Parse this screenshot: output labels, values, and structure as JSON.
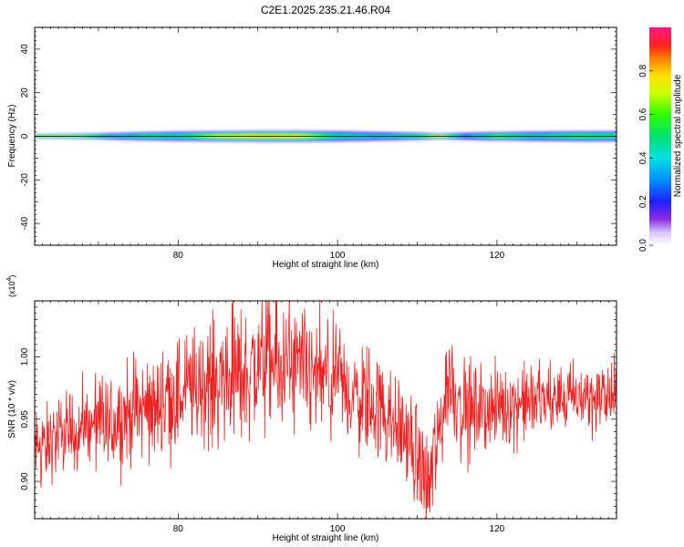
{
  "figure": {
    "title": "C2E1.2025.235.21.46.R04"
  },
  "chart_data": [
    {
      "type": "heatmap",
      "xlabel": "Height of straight line (km)",
      "ylabel": "Frequency (Hz)",
      "xlim": [
        62,
        135
      ],
      "ylim": [
        -50,
        50
      ],
      "x_ticks": [
        80,
        100,
        120
      ],
      "y_ticks": [
        -40,
        -20,
        0,
        20,
        40
      ],
      "colorbar": {
        "label": "Normalized spectral amplitude",
        "range": [
          0,
          1
        ],
        "ticks": [
          "0.0",
          "0.2",
          "0.4",
          "0.6",
          "0.8"
        ]
      },
      "band_center_hz": 0,
      "band_halfwidth_hz": [
        [
          63,
          1.2
        ],
        [
          70,
          1.6
        ],
        [
          75,
          2.2
        ],
        [
          80,
          2.6
        ],
        [
          85,
          2.8
        ],
        [
          90,
          3.0
        ],
        [
          95,
          3.0
        ],
        [
          100,
          2.8
        ],
        [
          105,
          2.4
        ],
        [
          110,
          2.0
        ],
        [
          113,
          1.6
        ],
        [
          118,
          2.2
        ],
        [
          125,
          2.6
        ],
        [
          130,
          2.8
        ],
        [
          135,
          2.8
        ]
      ],
      "peak_amplitude": [
        [
          63,
          0.82
        ],
        [
          68,
          0.78
        ],
        [
          72,
          0.45
        ],
        [
          76,
          0.6
        ],
        [
          80,
          0.55
        ],
        [
          85,
          0.82
        ],
        [
          90,
          0.9
        ],
        [
          95,
          0.88
        ],
        [
          100,
          0.55
        ],
        [
          105,
          0.45
        ],
        [
          110,
          0.62
        ],
        [
          113,
          0.9
        ],
        [
          116,
          0.35
        ],
        [
          120,
          0.7
        ],
        [
          125,
          0.5
        ],
        [
          130,
          0.65
        ],
        [
          135,
          0.6
        ]
      ]
    },
    {
      "type": "line",
      "xlabel": "Height of straight line (km)",
      "ylabel": "SNR (10 * v/v)",
      "y_scale_label": "(x10^4)",
      "xlim": [
        62,
        135
      ],
      "ylim": [
        0.87,
        1.045
      ],
      "x_ticks": [
        80,
        100,
        120
      ],
      "y_ticks": [
        0.9,
        0.95,
        1.0
      ],
      "y_tick_labels": [
        "0.90",
        "0.95",
        "1.00"
      ],
      "series": [
        {
          "name": "SNR",
          "color": "#ee2222",
          "trend": [
            [
              62,
              0.925
            ],
            [
              65,
              0.935
            ],
            [
              70,
              0.945
            ],
            [
              75,
              0.955
            ],
            [
              78,
              0.965
            ],
            [
              80,
              0.97
            ],
            [
              84,
              0.978
            ],
            [
              88,
              0.985
            ],
            [
              91,
              0.995
            ],
            [
              93,
              0.99
            ],
            [
              96,
              0.985
            ],
            [
              100,
              0.975
            ],
            [
              104,
              0.965
            ],
            [
              107,
              0.95
            ],
            [
              109,
              0.93
            ],
            [
              110.5,
              0.91
            ],
            [
              111.5,
              0.895
            ],
            [
              112.5,
              0.93
            ],
            [
              114,
              0.985
            ],
            [
              115.5,
              0.96
            ],
            [
              117,
              0.955
            ],
            [
              120,
              0.96
            ],
            [
              125,
              0.965
            ],
            [
              130,
              0.967
            ],
            [
              135,
              0.968
            ]
          ],
          "noise_amplitude": [
            [
              62,
              0.018
            ],
            [
              80,
              0.03
            ],
            [
              92,
              0.035
            ],
            [
              100,
              0.03
            ],
            [
              108,
              0.025
            ],
            [
              112,
              0.03
            ],
            [
              116,
              0.025
            ],
            [
              120,
              0.02
            ],
            [
              135,
              0.018
            ]
          ]
        }
      ]
    }
  ]
}
